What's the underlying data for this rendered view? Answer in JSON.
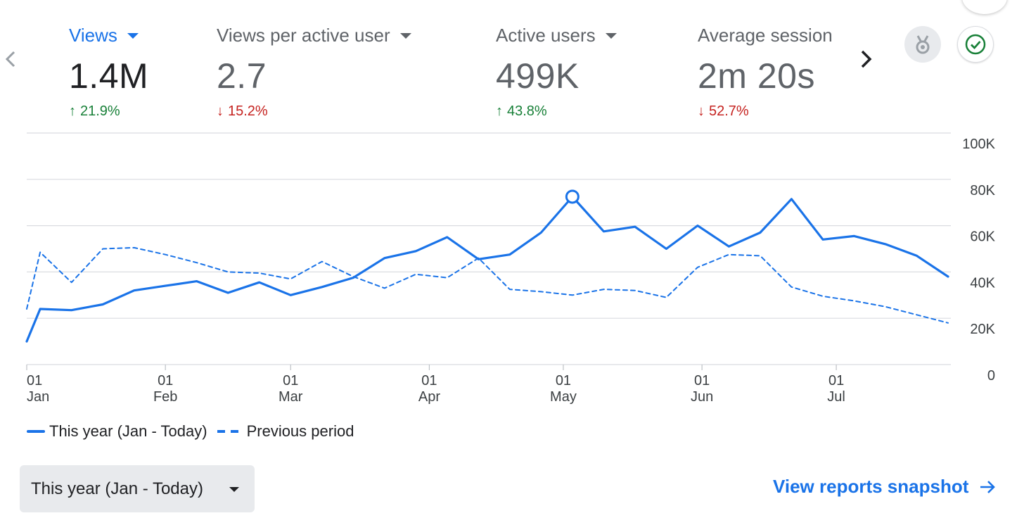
{
  "metrics": [
    {
      "label": "Views",
      "value": "1.4M",
      "change": "21.9%",
      "direction": "up",
      "has_dropdown": true,
      "selected": true
    },
    {
      "label": "Views per active user",
      "value": "2.7",
      "change": "15.2%",
      "direction": "down",
      "has_dropdown": true,
      "selected": false
    },
    {
      "label": "Active users",
      "value": "499K",
      "change": "43.8%",
      "direction": "up",
      "has_dropdown": true,
      "selected": false
    },
    {
      "label": "Average session",
      "value": "2m 20s",
      "change": "52.7%",
      "direction": "down",
      "has_dropdown": false,
      "selected": false
    }
  ],
  "icons": {
    "prev": "chevron-left-icon",
    "next": "chevron-right-icon",
    "badge": "medal-icon",
    "status": "check-circle-icon"
  },
  "colors": {
    "accent": "#1a73e8",
    "up": "#188038",
    "down": "#c5221f",
    "grid": "#dadce0",
    "muted": "#5f6368"
  },
  "chart_data": {
    "type": "line",
    "y_ticks": [
      "100K",
      "80K",
      "60K",
      "40K",
      "20K",
      "0"
    ],
    "ylim": [
      0,
      100000
    ],
    "x_ticks": [
      {
        "day": "01",
        "month": "Jan",
        "week": 0
      },
      {
        "day": "01",
        "month": "Feb",
        "week": 4.43
      },
      {
        "day": "01",
        "month": "Mar",
        "week": 8.43
      },
      {
        "day": "01",
        "month": "Apr",
        "week": 12.86
      },
      {
        "day": "01",
        "month": "May",
        "week": 17.14
      },
      {
        "day": "01",
        "month": "Jun",
        "week": 21.57
      },
      {
        "day": "01",
        "month": "Jul",
        "week": 25.86
      }
    ],
    "grid": true,
    "legend_position": "bottom-left",
    "series": [
      {
        "name": "This year (Jan - Today)",
        "style": "solid",
        "x": [
          0,
          0.43,
          1.43,
          2.43,
          3.43,
          4.43,
          5.43,
          6.43,
          7.43,
          8.43,
          9.43,
          10.43,
          11.43,
          12.43,
          13.43,
          14.43,
          15.43,
          16.43,
          17.43,
          18.43,
          19.43,
          20.43,
          21.43,
          22.43,
          23.43,
          24.43,
          25.43,
          26.43,
          27.43,
          28.43,
          29.43
        ],
        "values": [
          10000,
          24000,
          23500,
          26000,
          32000,
          34000,
          36000,
          31000,
          35500,
          30000,
          33500,
          37500,
          46000,
          49000,
          55000,
          45500,
          47500,
          57000,
          72500,
          57500,
          59500,
          50000,
          60000,
          51000,
          57000,
          71500,
          54000,
          55500,
          52000,
          47000,
          38000
        ],
        "highlight_index": 18
      },
      {
        "name": "Previous period",
        "style": "dashed",
        "x": [
          0,
          0.43,
          1.43,
          2.43,
          3.43,
          4.43,
          5.43,
          6.43,
          7.43,
          8.43,
          9.43,
          10.43,
          11.43,
          12.43,
          13.43,
          14.43,
          15.43,
          16.43,
          17.43,
          18.43,
          19.43,
          20.43,
          21.43,
          22.43,
          23.43,
          24.43,
          25.43,
          26.43,
          27.43,
          28.43,
          29.43
        ],
        "values": [
          24000,
          48500,
          35500,
          50000,
          50500,
          47500,
          44000,
          40000,
          39500,
          37000,
          44500,
          38000,
          33000,
          39000,
          37500,
          46000,
          32500,
          31500,
          30000,
          32500,
          32000,
          29000,
          42000,
          47500,
          47000,
          33500,
          29500,
          27500,
          25000,
          21500,
          18000
        ]
      }
    ]
  },
  "range_selector": {
    "value": "This year (Jan - Today)"
  },
  "view_reports_link": {
    "label": "View reports snapshot"
  }
}
